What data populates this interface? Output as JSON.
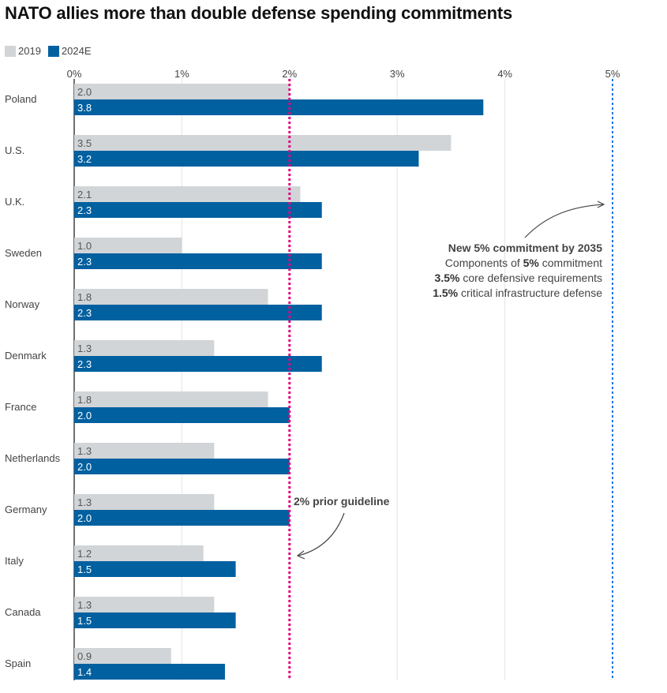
{
  "title": "NATO allies more than double defense spending commitments",
  "legend": [
    {
      "label": "2019",
      "color": "#d1d5d8"
    },
    {
      "label": "2024E",
      "color": "#0060a0"
    }
  ],
  "chart_data": {
    "type": "bar",
    "orientation": "horizontal",
    "title": "NATO allies more than double defense spending commitments",
    "xlabel": "",
    "ylabel": "",
    "xlim": [
      0,
      5
    ],
    "x_ticks": [
      "0%",
      "1%",
      "2%",
      "3%",
      "4%",
      "5%"
    ],
    "grid": true,
    "legend_position": "top-left",
    "categories": [
      "Poland",
      "U.S.",
      "U.K.",
      "Sweden",
      "Norway",
      "Denmark",
      "France",
      "Netherlands",
      "Germany",
      "Italy",
      "Canada",
      "Spain"
    ],
    "series": [
      {
        "name": "2019",
        "color": "#d1d5d8",
        "values": [
          2.0,
          3.5,
          2.1,
          1.0,
          1.8,
          1.3,
          1.8,
          1.3,
          1.3,
          1.2,
          1.3,
          0.9
        ]
      },
      {
        "name": "2024E",
        "color": "#0060a0",
        "values": [
          3.8,
          3.2,
          2.3,
          2.3,
          2.3,
          2.3,
          2.0,
          2.0,
          2.0,
          1.5,
          1.5,
          1.4
        ]
      }
    ],
    "reference_lines": [
      {
        "value": 2,
        "color": "#e6007e",
        "style": "dotted",
        "label": "2% prior guideline"
      },
      {
        "value": 5,
        "color": "#1a73e8",
        "style": "dotted",
        "label": "New 5% commitment by 2035"
      }
    ],
    "annotations": {
      "guideline": "2% prior guideline",
      "commitment": {
        "heading": "New 5% commitment by 2035",
        "lines": [
          {
            "bold": "",
            "pre": "Components of ",
            "boldInline": "5%",
            "post": " commitment"
          },
          {
            "bold": "3.5%",
            "pre": "",
            "boldInline": "",
            "post": " core defensive requirements"
          },
          {
            "bold": "1.5%",
            "pre": "",
            "boldInline": "",
            "post": " critical infrastructure defense"
          }
        ]
      }
    }
  }
}
